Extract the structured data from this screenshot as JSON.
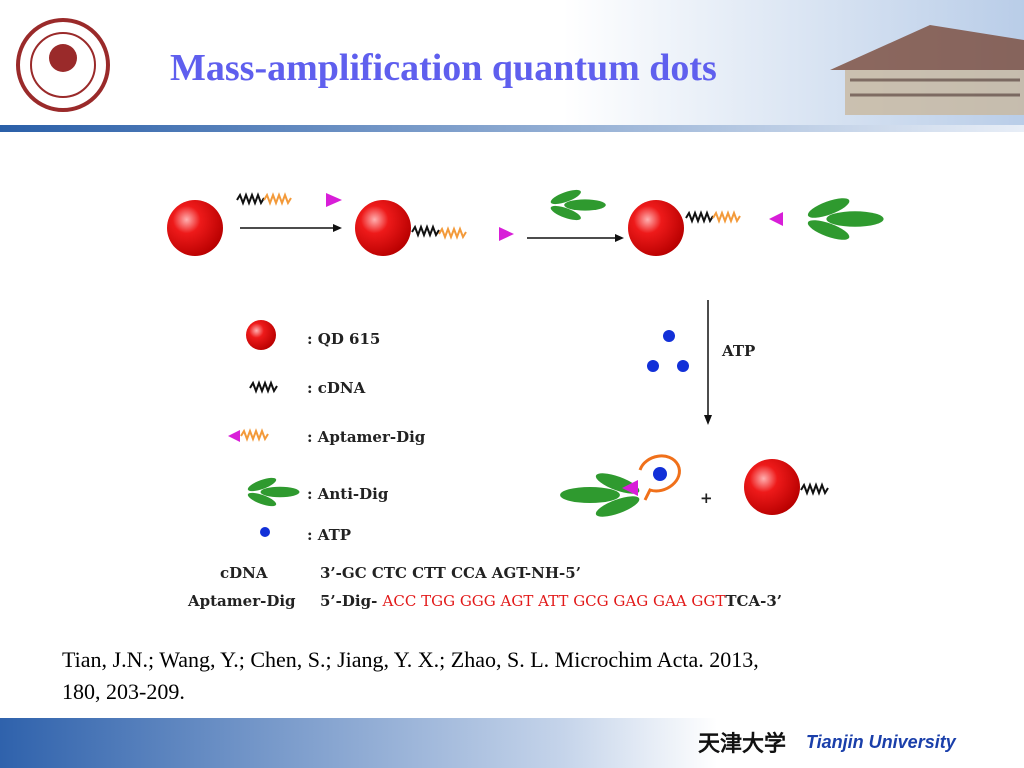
{
  "header": {
    "title": "Mass-amplification quantum dots"
  },
  "diagram": {
    "legend": [
      ": QD 615",
      ": cDNA",
      ": Aptamer-Dig",
      ": Anti-Dig",
      ": ATP"
    ],
    "step_label": "ATP",
    "plus": "+",
    "sequences": [
      {
        "name": "cDNA",
        "parts": [
          "3’-GC CTC CTT CCA AGT-NH-5’"
        ]
      },
      {
        "name": "Aptamer-Dig",
        "parts": [
          "5’-Dig- ",
          "ACC TGG GGG AGT ATT GCG GAG GAA GGT",
          "TCA-3’"
        ]
      }
    ]
  },
  "citation": {
    "lines": [
      "Tian, J.N.; Wang, Y.; Chen, S.; Jiang,  Y. X.; Zhao, S. L.  Microchim Acta. 2013,",
      "180, 203-209."
    ]
  },
  "footer": {
    "logo_text": "天津大学",
    "university": "Tianjin University"
  }
}
